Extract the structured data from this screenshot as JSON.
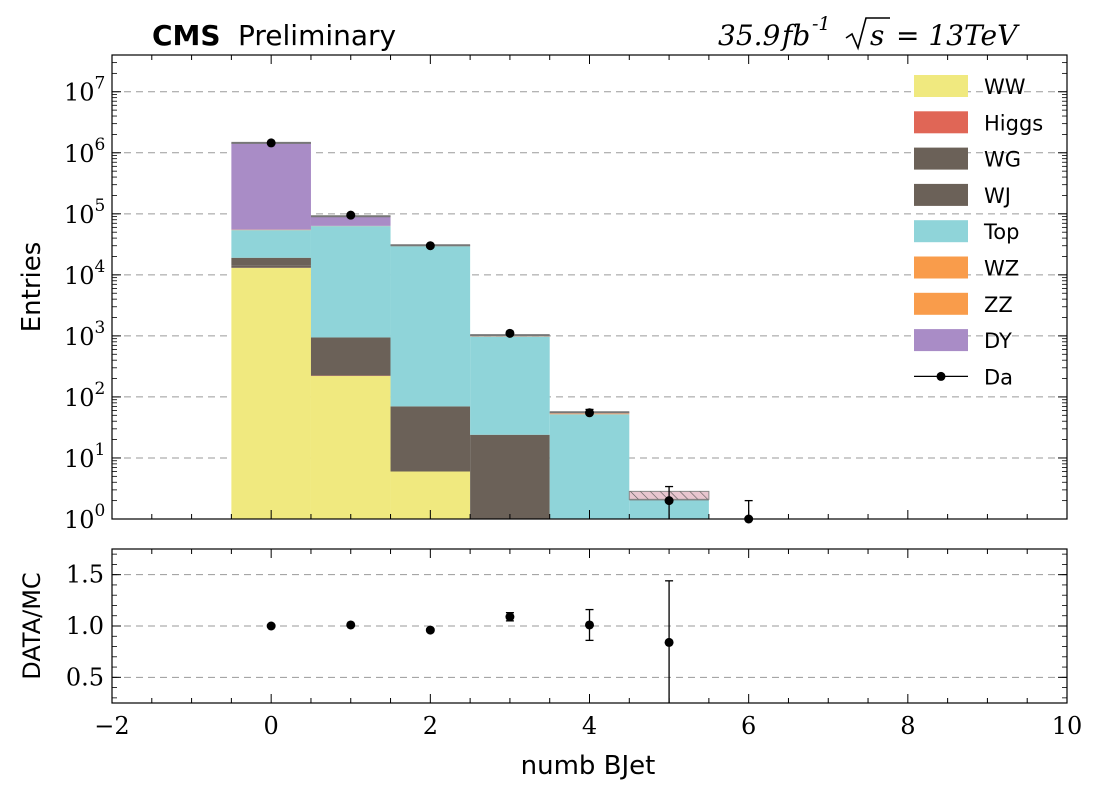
{
  "header": {
    "experiment": "CMS",
    "status": "Preliminary",
    "lumi_value": "35.9",
    "lumi_unit": "fb",
    "lumi_exp": "-1",
    "energy_lhs": "s",
    "energy_rhs": "= 13TeV"
  },
  "chart_data": [
    {
      "type": "bar",
      "stacked": true,
      "yscale": "log",
      "ylim": [
        1,
        40000000
      ],
      "xlim": [
        -2,
        10
      ],
      "ylabel": "Entries",
      "grid": true,
      "legend_placement": "top-right",
      "bin_centers": [
        0,
        1,
        2,
        3,
        4,
        5
      ],
      "bin_width": 1,
      "series": [
        {
          "name": "WW",
          "color": "#f0e97f",
          "values": [
            13000,
            220,
            6,
            0,
            0,
            0
          ]
        },
        {
          "name": "Higgs",
          "color": "#e06656",
          "values": [
            60,
            3,
            0,
            0,
            0,
            0
          ]
        },
        {
          "name": "WG",
          "color": "#6b6158",
          "values": [
            1000,
            0,
            0,
            0,
            0,
            0
          ]
        },
        {
          "name": "WJ",
          "color": "#6b6158",
          "values": [
            5000,
            720,
            64,
            24,
            0,
            0
          ]
        },
        {
          "name": "Top",
          "color": "#8fd4d9",
          "values": [
            35000,
            62000,
            29500,
            950,
            52,
            2.1
          ]
        },
        {
          "name": "WZ",
          "color": "#f99c4b",
          "values": [
            500,
            300,
            120,
            10,
            1,
            0
          ]
        },
        {
          "name": "ZZ",
          "color": "#f99c4b",
          "values": [
            400,
            200,
            80,
            6,
            1,
            0
          ]
        },
        {
          "name": "DY",
          "color": "#a98cc6",
          "values": [
            1400000,
            28000,
            800,
            40,
            2,
            0
          ]
        }
      ],
      "data": {
        "name": "Da",
        "color": "#000000",
        "x": [
          0,
          1,
          2,
          3,
          4,
          5,
          6
        ],
        "y": [
          1450000,
          95000,
          30000,
          1100,
          55,
          2,
          1
        ],
        "yerr_up": [
          1200,
          300,
          170,
          33,
          7.4,
          1.4,
          1.0
        ],
        "yerr_down": [
          1200,
          300,
          170,
          33,
          7.4,
          1.4,
          0.8
        ]
      },
      "uncertainty_band": {
        "bin": 5,
        "color": "#9a9a9a",
        "hatched": true
      },
      "yticks": [
        "10^0",
        "10^1",
        "10^2",
        "10^3",
        "10^4",
        "10^5",
        "10^6",
        "10^7"
      ]
    },
    {
      "type": "scatter",
      "ylabel": "DATA/MC",
      "xlabel": "numb BJet",
      "xlim": [
        -2,
        10
      ],
      "ylim": [
        0.25,
        1.75
      ],
      "grid": true,
      "points": {
        "x": [
          0,
          1,
          2,
          3,
          4,
          5
        ],
        "y": [
          1.0,
          1.01,
          0.96,
          1.09,
          1.01,
          0.84
        ],
        "yerr": [
          0.0,
          0.005,
          0.01,
          0.04,
          0.15,
          0.6
        ]
      },
      "yticks": [
        "0.5",
        "1.0",
        "1.5"
      ],
      "xticks": [
        "−2",
        "0",
        "2",
        "4",
        "6",
        "8",
        "10"
      ]
    }
  ]
}
